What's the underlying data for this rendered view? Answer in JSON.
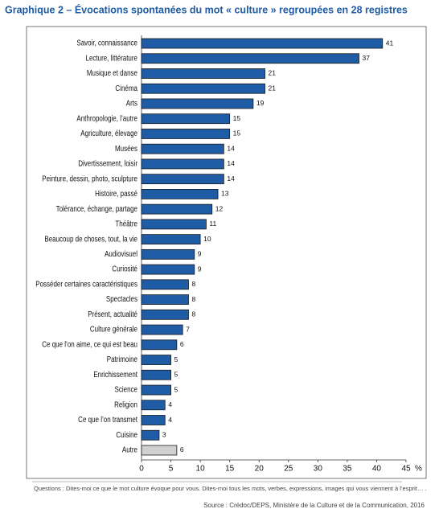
{
  "chart_data": {
    "type": "bar",
    "orientation": "horizontal",
    "title": "Graphique 2 – Évocations spontanées du mot « culture » regroupées en 28 registres",
    "categories": [
      "Savoir, connaissance",
      "Lecture, littérature",
      "Musique et danse",
      "Cinéma",
      "Arts",
      "Anthropologie, l’autre",
      "Agriculture, élevage",
      "Musées",
      "Divertissement, loisir",
      "Peinture, dessin, photo, sculpture",
      "Histoire, passé",
      "Tolérance, échange, partage",
      "Théâtre",
      "Beaucoup de choses, tout, la vie",
      "Audiovisuel",
      "Curiosité",
      "Posséder certaines caractéristiques",
      "Spectacles",
      "Présent, actualité",
      "Culture générale",
      "Ce que l’on aime, ce qui est beau",
      "Patrimoine",
      "Enrichissement",
      "Science",
      "Religion",
      "Ce que l’on transmet",
      "Cuisine",
      "Autre"
    ],
    "values": [
      41,
      37,
      21,
      21,
      19,
      15,
      15,
      14,
      14,
      14,
      13,
      12,
      11,
      10,
      9,
      9,
      8,
      8,
      8,
      7,
      6,
      5,
      5,
      5,
      4,
      4,
      3,
      6
    ],
    "colors": [
      "#1f5ca6",
      "#1f5ca6",
      "#1f5ca6",
      "#1f5ca6",
      "#1f5ca6",
      "#1f5ca6",
      "#1f5ca6",
      "#1f5ca6",
      "#1f5ca6",
      "#1f5ca6",
      "#1f5ca6",
      "#1f5ca6",
      "#1f5ca6",
      "#1f5ca6",
      "#1f5ca6",
      "#1f5ca6",
      "#1f5ca6",
      "#1f5ca6",
      "#1f5ca6",
      "#1f5ca6",
      "#1f5ca6",
      "#1f5ca6",
      "#1f5ca6",
      "#1f5ca6",
      "#1f5ca6",
      "#1f5ca6",
      "#1f5ca6",
      "#d0d0d0"
    ],
    "xlim": [
      0,
      45
    ],
    "xticks": [
      0,
      5,
      10,
      15,
      20,
      25,
      30,
      35,
      40,
      45
    ],
    "x_unit": "%",
    "note": "Questions : Dites-moi ce que le mot culture évoque pour vous. Dites-moi tous les mots, verbes, expressions, images qui vous viennent à l’esprit… .",
    "source": "Source : Crédoc/DEPS, Ministère de la Culture et de la Communication, 2016"
  }
}
